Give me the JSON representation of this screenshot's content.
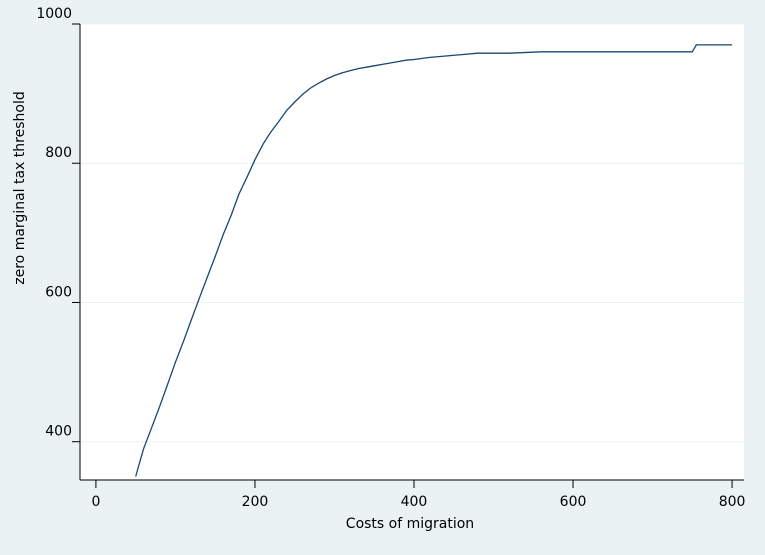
{
  "chart_data": {
    "type": "line",
    "title": "",
    "xlabel": "Costs of migration",
    "ylabel": "zero marginal tax threshold",
    "xlim": [
      -20,
      815
    ],
    "ylim": [
      345,
      1000
    ],
    "x_ticks": [
      0,
      200,
      400,
      600,
      800
    ],
    "y_ticks": [
      400,
      600,
      800,
      1000
    ],
    "grid": true,
    "legend": "none",
    "line_color": "#1a476f",
    "series": [
      {
        "x": [
          50,
          55,
          60,
          70,
          80,
          90,
          100,
          110,
          120,
          130,
          140,
          150,
          160,
          170,
          180,
          190,
          200,
          210,
          220,
          230,
          240,
          250,
          260,
          270,
          280,
          290,
          300,
          310,
          320,
          330,
          340,
          350,
          360,
          370,
          380,
          390,
          400,
          420,
          440,
          460,
          480,
          520,
          560,
          600,
          700,
          750,
          755,
          800
        ],
        "y": [
          350,
          370,
          390,
          420,
          450,
          482,
          514,
          544,
          575,
          606,
          636,
          666,
          697,
          725,
          756,
          780,
          805,
          827,
          845,
          860,
          876,
          888,
          899,
          908,
          915,
          921,
          926,
          930,
          933,
          936,
          938,
          940,
          942,
          944,
          946,
          948,
          949,
          952,
          954,
          956,
          958,
          958,
          960,
          960,
          960,
          960,
          970,
          970
        ]
      }
    ]
  }
}
